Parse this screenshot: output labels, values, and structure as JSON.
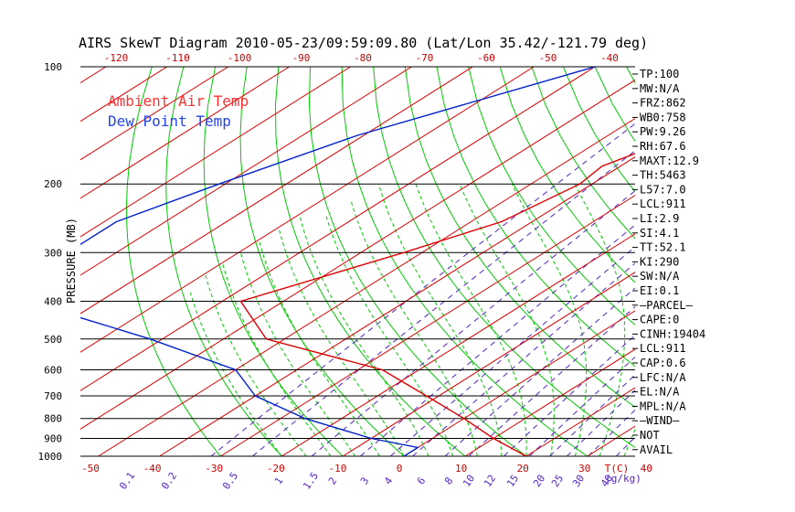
{
  "chart_data": {
    "type": "line",
    "title": "AIRS SkewT Diagram 2010-05-23/09:59:09.80 (Lat/Lon 35.42/-121.79 deg)",
    "ylabel": "PRESSURE (MB)",
    "xlabel_bottom_unit": "T(C)",
    "mixing_ratio_unit": "(g/kg)",
    "y_ticks": [
      "100",
      "200",
      "300",
      "400",
      "500",
      "600",
      "700",
      "800",
      "900",
      "1000"
    ],
    "ylim": [
      100,
      1000
    ],
    "y_scale": "log",
    "x_ticks_bottom": [
      "-50",
      "-40",
      "-30",
      "-20",
      "-10",
      "0",
      "10",
      "20",
      "30",
      "40"
    ],
    "x_ticks_top": [
      "-120",
      "-110",
      "-100",
      "-90",
      "-80",
      "-70",
      "-60",
      "-50",
      "-40"
    ],
    "mixing_ratio_labels": [
      "0.1",
      "0.2",
      "0.5",
      "1",
      "1.5",
      "2",
      "3",
      "4",
      "6",
      "8",
      "10",
      "12",
      "15",
      "20",
      "25",
      "30",
      "40"
    ],
    "legend": [
      {
        "name": "Ambient Air Temp",
        "color": "#ff3333"
      },
      {
        "name": "Dew Point Temp",
        "color": "#2244ee"
      }
    ],
    "series": [
      {
        "name": "Ambient Air Temp",
        "color": "#dd0000",
        "points": [
          [
            100,
            -36
          ],
          [
            180,
            -53
          ],
          [
            200,
            -52
          ],
          [
            250,
            -55
          ],
          [
            300,
            -63
          ],
          [
            400,
            -77
          ],
          [
            500,
            -63
          ],
          [
            600,
            -36
          ],
          [
            700,
            -22
          ],
          [
            800,
            -10
          ],
          [
            900,
            0
          ],
          [
            1000,
            10
          ]
        ]
      },
      {
        "name": "Dew Point Temp",
        "color": "#0022cc",
        "points": [
          [
            100,
            -80
          ],
          [
            150,
            -101
          ],
          [
            200,
            -111
          ],
          [
            250,
            -118
          ],
          [
            300,
            -118
          ],
          [
            400,
            -112
          ],
          [
            500,
            -82
          ],
          [
            600,
            -60
          ],
          [
            700,
            -50
          ],
          [
            800,
            -36
          ],
          [
            900,
            -20
          ],
          [
            950,
            -10
          ],
          [
            1000,
            -10
          ]
        ]
      }
    ],
    "indices": [
      "TP:100",
      "MW:N/A",
      "FRZ:862",
      "WB0:758",
      "PW:9.26",
      "RH:67.6",
      "MAXT:12.9",
      "TH:5463",
      "L57:7.0",
      "LCL:911",
      "LI:2.9",
      "SI:4.1",
      "TT:52.1",
      "KI:290",
      "SW:N/A",
      "EI:0.1",
      "–PARCEL–",
      "CAPE:0",
      "CINH:19404",
      "LCL:911",
      "CAP:0.6",
      "LFC:N/A",
      "EL:N/A",
      "MPL:N/A",
      "–WIND–",
      "NOT",
      "AVAIL"
    ],
    "colors": {
      "isotherm": "#dd0000",
      "dry_adiabat": "#00cc00",
      "moist_adiabat": "#00cc00",
      "mixing_ratio": "#5522cc",
      "isobar": "#000000",
      "top_ticks": "#cc0000",
      "bottom_ticks": "#cc0000"
    },
    "grid": true
  }
}
